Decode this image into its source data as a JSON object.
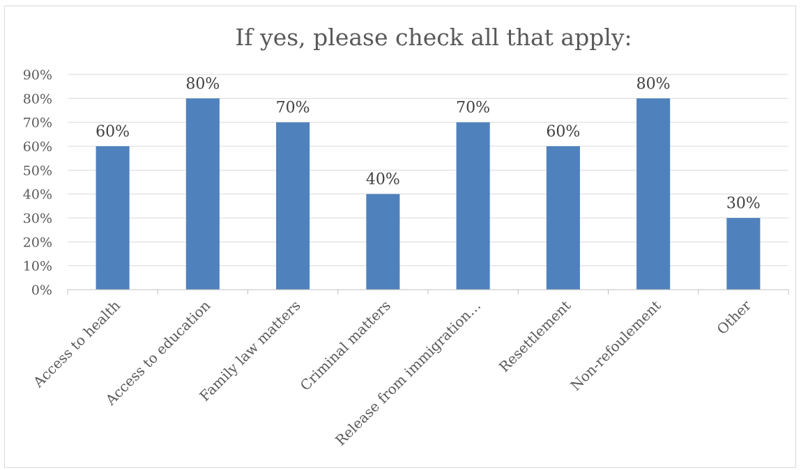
{
  "chart_data": {
    "type": "bar",
    "title": "If yes, please check all that apply:",
    "categories": [
      "Access to health",
      "Access to education",
      "Family law matters",
      "Criminal matters",
      "Release from immigration…",
      "Resettlement",
      "Non-refoulement",
      "Other"
    ],
    "values": [
      60,
      80,
      70,
      40,
      70,
      60,
      80,
      30
    ],
    "data_labels": [
      "60%",
      "80%",
      "70%",
      "40%",
      "70%",
      "60%",
      "80%",
      "30%"
    ],
    "y_ticks": [
      "0%",
      "10%",
      "20%",
      "30%",
      "40%",
      "50%",
      "60%",
      "70%",
      "80%",
      "90%"
    ],
    "ylim": [
      0,
      90
    ],
    "y_unit": "%",
    "grid": true,
    "legend": "none",
    "colors": {
      "bar": "#4f81bd",
      "grid": "#d9d9d9",
      "axis": "#bfbfbf",
      "text": "#595959",
      "label": "#404040"
    }
  }
}
